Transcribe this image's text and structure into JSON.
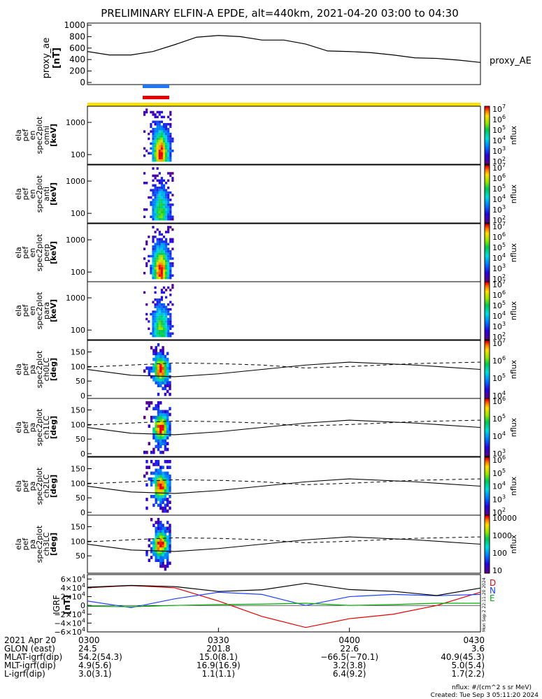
{
  "title": "PRELIMINARY ELFIN-A EPDE, alt=440km, 2021-04-20 03:00 to 04:30",
  "colors": {
    "blue_bar": "#1e78ff",
    "red_bar": "#e60000",
    "yellow_bar": "#ffe000",
    "B_red": "#e60000",
    "B_blue": "#1e40ff",
    "B_green": "#00b000"
  },
  "ae_panel": {
    "ylabel_lines": [
      "proxy_ae",
      "[nT]"
    ],
    "yticks": [
      "1000",
      "800",
      "600",
      "400",
      "200",
      "0"
    ],
    "legend": "proxy_AE"
  },
  "spec_panels": [
    {
      "ylabel_lines": [
        "ela",
        "pef",
        "en",
        "spec2plot",
        "omni",
        "[keV]"
      ],
      "yticks": [
        "1000",
        "100"
      ],
      "cb_ticks": [
        "10^7",
        "10^6",
        "10^5",
        "10^4",
        "10^3",
        "10^2"
      ],
      "cb_label": "nflux"
    },
    {
      "ylabel_lines": [
        "ela",
        "pef",
        "en",
        "spec2plot",
        "anti",
        "[keV]"
      ],
      "yticks": [
        "1000",
        "100"
      ],
      "cb_ticks": [
        "10^7",
        "10^6",
        "10^5",
        "10^4",
        "10^3",
        "10^2"
      ],
      "cb_label": "nflux"
    },
    {
      "ylabel_lines": [
        "ela",
        "pef",
        "en",
        "spec2plot",
        "perp",
        "[keV]"
      ],
      "yticks": [
        "1000",
        "100"
      ],
      "cb_ticks": [
        "10^7",
        "10^6",
        "10^5",
        "10^4",
        "10^3",
        "10^2"
      ],
      "cb_label": "nflux"
    },
    {
      "ylabel_lines": [
        "ela",
        "pef",
        "en",
        "spec2plot",
        "para",
        "[keV]"
      ],
      "yticks": [
        "1000",
        "100"
      ],
      "cb_ticks": [
        "10^7",
        "10^6",
        "10^5",
        "10^4",
        "10^3",
        "10^2"
      ],
      "cb_label": "nflux"
    }
  ],
  "pa_panels": [
    {
      "ylabel_lines": [
        "ela",
        "pef",
        "pa",
        "spec2plot",
        "ch0LC",
        "[deg]"
      ],
      "yticks": [
        "150",
        "100",
        "50",
        "0"
      ],
      "cb_ticks": [
        "10^7",
        "10^6",
        "10^5",
        "10^4"
      ],
      "cb_label": "nflux"
    },
    {
      "ylabel_lines": [
        "ela",
        "pef",
        "pa",
        "spec2plot",
        "ch1LC",
        "[deg]"
      ],
      "yticks": [
        "150",
        "100",
        "50",
        "0"
      ],
      "cb_ticks": [
        "10^6",
        "10^5",
        "10^4",
        "10^3"
      ],
      "cb_label": "nflux"
    },
    {
      "ylabel_lines": [
        "ela",
        "pef",
        "pa",
        "spec2plot",
        "ch2LC",
        "[deg]"
      ],
      "yticks": [
        "150",
        "100",
        "50",
        "0"
      ],
      "cb_ticks": [
        "10^6",
        "10^5",
        "10^4",
        "10^3",
        "10^2"
      ],
      "cb_label": "nflux"
    },
    {
      "ylabel_lines": [
        "ela",
        "pef",
        "pa",
        "spec2plot",
        "ch3LC",
        "[deg]"
      ],
      "yticks": [
        "150",
        "100",
        "50"
      ],
      "cb_ticks": [
        "10000",
        "1000",
        "100",
        "10"
      ],
      "cb_label": "nflux"
    }
  ],
  "igrf_panel": {
    "ylabel_lines": [
      "IGRF",
      "[nT]"
    ],
    "yticks": [
      "6×10^4",
      "4×10^4",
      "2×10^4",
      "0",
      "−2×10^4",
      "−4×10^4",
      "−6×10^4"
    ],
    "legend": [
      "D",
      "N",
      "E"
    ],
    "side_text": "Mon Sep  2 22:11:20 2024"
  },
  "footer": {
    "rows": [
      {
        "label": "2021 Apr 20",
        "values": [
          "0300",
          "0330",
          "0400",
          "0430"
        ]
      },
      {
        "label": "GLON (east)",
        "values": [
          "24.5",
          "201.8",
          "22.6",
          "3.6"
        ]
      },
      {
        "label": "MLAT-igrf(dip)",
        "values": [
          "54.2(54.3)",
          "15.0(8.1)",
          "−66.5(−70.1)",
          "40.9(45.3)"
        ]
      },
      {
        "label": "MLT-igrf(dip)",
        "values": [
          "4.9(5.6)",
          "16.9(16.9)",
          "3.2(3.8)",
          "5.0(5.4)"
        ]
      },
      {
        "label": "L-igrf(dip)",
        "values": [
          "3.0(3.1)",
          "1.1(1.1)",
          "6.4(9.2)",
          "1.7(2.2)"
        ]
      }
    ],
    "units_note": "nflux: #/(cm^2 s sr MeV)",
    "created": "Created: Tue Sep  3 05:11:20 2024"
  },
  "chart_data": [
    {
      "type": "line",
      "name": "proxy_ae",
      "x": [
        "03:00",
        "03:05",
        "03:10",
        "03:15",
        "03:20",
        "03:25",
        "03:30",
        "03:35",
        "03:40",
        "03:45",
        "03:50",
        "03:55",
        "04:00",
        "04:05",
        "04:10",
        "04:15",
        "04:20",
        "04:25",
        "04:30"
      ],
      "values": [
        540,
        480,
        480,
        540,
        660,
        790,
        820,
        800,
        740,
        740,
        670,
        550,
        540,
        520,
        480,
        430,
        420,
        390,
        350
      ],
      "ylim": [
        0,
        1000
      ]
    },
    {
      "type": "heatmap",
      "panels": [
        "omni",
        "anti",
        "perp",
        "para"
      ],
      "time_range": [
        "03:13",
        "03:21"
      ],
      "peak_time": "03:16",
      "energy_range_keV": [
        60,
        3000
      ],
      "flux_range": [
        100.0,
        10000000.0
      ]
    },
    {
      "type": "heatmap",
      "panels": [
        "ch0LC",
        "ch1LC",
        "ch2LC",
        "ch3LC"
      ],
      "time_range": [
        "03:13",
        "03:21"
      ],
      "pa_range_deg": [
        0,
        180
      ],
      "loss_cone_solid": [
        90,
        70,
        65,
        75,
        90,
        105,
        115,
        105,
        90
      ],
      "loss_cone_dashed": [
        98,
        105,
        112,
        110,
        105,
        95,
        100,
        110,
        115
      ],
      "lc_times": [
        "03:00",
        "03:10",
        "03:20",
        "03:30",
        "03:40",
        "03:50",
        "04:00",
        "04:15",
        "04:30"
      ]
    },
    {
      "type": "line",
      "name": "IGRF",
      "x": [
        "03:00",
        "03:10",
        "03:20",
        "03:30",
        "03:40",
        "03:50",
        "04:00",
        "04:10",
        "04:20",
        "04:30"
      ],
      "series": [
        {
          "name": "D",
          "values": [
            40000,
            45000,
            40000,
            10000,
            -25000,
            -50000,
            -30000,
            -20000,
            0,
            30000
          ]
        },
        {
          "name": "N",
          "values": [
            10000,
            -5000,
            15000,
            30000,
            25000,
            0,
            20000,
            25000,
            22000,
            25000
          ]
        },
        {
          "name": "E",
          "values": [
            -2000,
            -3000,
            0,
            2000,
            3000,
            5000,
            0,
            2000,
            5000,
            5000
          ]
        }
      ],
      "ylim": [
        -60000,
        70000
      ]
    }
  ]
}
